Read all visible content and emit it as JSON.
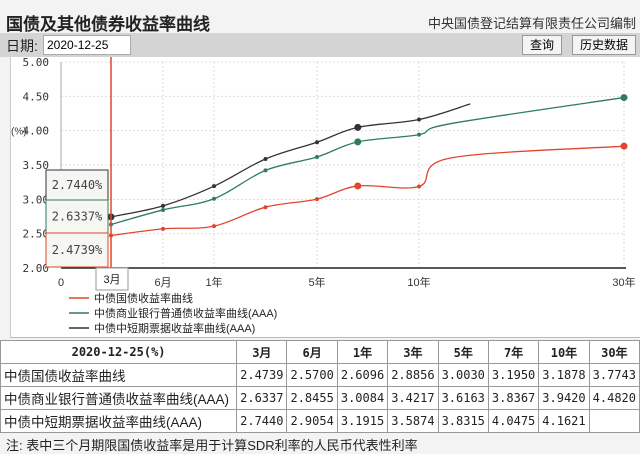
{
  "header": {
    "title": "国债及其他债券收益率曲线",
    "publisher": "中央国债登记结算有限责任公司编制"
  },
  "toolbar": {
    "date_label": "日期:",
    "date_value": "2020-12-25",
    "query_button": "查询",
    "history_button": "历史数据"
  },
  "tooltip": {
    "values": [
      "2.7440%",
      "2.6337%",
      "2.4739%"
    ],
    "x_label": "3月"
  },
  "chart_data": {
    "type": "line",
    "ylabel": "(%)",
    "ylim": [
      2.0,
      5.0
    ],
    "yticks": [
      "2.00",
      "2.50",
      "3.00",
      "3.50",
      "4.00",
      "4.50",
      "5.00"
    ],
    "xticks": [
      {
        "label": "0",
        "years": 0
      },
      {
        "label": "3月",
        "years": 0.25
      },
      {
        "label": "6月",
        "years": 0.5
      },
      {
        "label": "1年",
        "years": 1
      },
      {
        "label": "5年",
        "years": 5
      },
      {
        "label": "10年",
        "years": 10
      },
      {
        "label": "30年",
        "years": 30
      }
    ],
    "grid": true,
    "legend_position": "bottom-left",
    "series": [
      {
        "name": "中债国债收益率曲线",
        "color": "#e0462f",
        "points": [
          [
            0.25,
            2.4739
          ],
          [
            0.5,
            2.57
          ],
          [
            1,
            2.6096
          ],
          [
            3,
            2.8856
          ],
          [
            5,
            3.003
          ],
          [
            7,
            3.195
          ],
          [
            10,
            3.1878
          ],
          [
            13,
            3.6
          ],
          [
            30,
            3.7743
          ]
        ],
        "marked": [
          7,
          30
        ]
      },
      {
        "name": "中债商业银行普通债收益率曲线(AAA)",
        "color": "#2e7d5b",
        "points": [
          [
            0.25,
            2.6337
          ],
          [
            0.5,
            2.8455
          ],
          [
            1,
            3.0084
          ],
          [
            3,
            3.4217
          ],
          [
            5,
            3.6163
          ],
          [
            7,
            3.8367
          ],
          [
            10,
            3.942
          ],
          [
            13,
            4.1
          ],
          [
            30,
            4.482
          ]
        ],
        "marked": [
          7,
          30
        ]
      },
      {
        "name": "中债中短期票据收益率曲线(AAA)",
        "color": "#333333",
        "points": [
          [
            0.25,
            2.744
          ],
          [
            0.5,
            2.9054
          ],
          [
            1,
            3.1915
          ],
          [
            3,
            3.5874
          ],
          [
            5,
            3.8315
          ],
          [
            7,
            4.0475
          ],
          [
            10,
            4.1621
          ],
          [
            15,
            4.39
          ]
        ],
        "marked": [
          7
        ]
      }
    ]
  },
  "table": {
    "header": [
      "2020-12-25(%)",
      "3月",
      "6月",
      "1年",
      "3年",
      "5年",
      "7年",
      "10年",
      "30年"
    ],
    "rows": [
      {
        "name": "中债国债收益率曲线",
        "values": [
          "2.4739",
          "2.5700",
          "2.6096",
          "2.8856",
          "3.0030",
          "3.1950",
          "3.1878",
          "3.7743"
        ]
      },
      {
        "name": "中债商业银行普通债收益率曲线(AAA)",
        "values": [
          "2.6337",
          "2.8455",
          "3.0084",
          "3.4217",
          "3.6163",
          "3.8367",
          "3.9420",
          "4.4820"
        ]
      },
      {
        "name": "中债中短期票据收益率曲线(AAA)",
        "values": [
          "2.7440",
          "2.9054",
          "3.1915",
          "3.5874",
          "3.8315",
          "4.0475",
          "4.1621",
          ""
        ]
      }
    ]
  },
  "note": "注:  表中三个月期限国债收益率是用于计算SDR利率的人民币代表性利率"
}
